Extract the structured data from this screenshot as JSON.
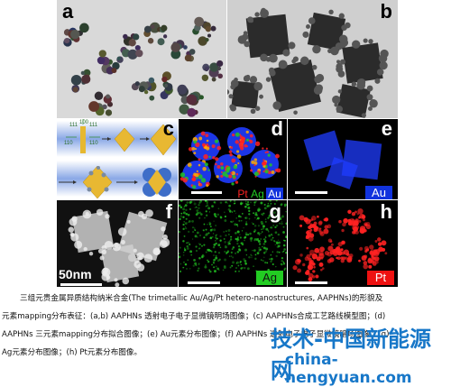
{
  "panels": {
    "a": {
      "label": "a"
    },
    "b": {
      "label": "b"
    },
    "c": {
      "label": "c",
      "miller": [
        "111",
        "100",
        "111",
        "110",
        "110"
      ]
    },
    "d": {
      "label": "d",
      "legend": [
        "Pt",
        "Ag",
        "Au"
      ]
    },
    "e": {
      "label": "e",
      "element": "Au"
    },
    "f": {
      "label": "f",
      "scale_text": "50nm"
    },
    "g": {
      "label": "g",
      "element": "Ag"
    },
    "h": {
      "label": "h",
      "element": "Pt"
    }
  },
  "colors": {
    "au": "#1f3cff",
    "ag": "#22c422",
    "pt": "#ff2222",
    "tag_green": "#22cc22",
    "tag_red": "#ee1111",
    "tag_blue": "#1133dd"
  },
  "caption": {
    "line1": "三组元贵金属异质结构纳米合金(The trimetallic Au/Ag/Pt hetero-nanostructures, AAPHNs)的形貌及",
    "line2": "元素mapping分布表征：(a,b) AAPHNs 透射电子电子显微镜明场图像；(c) AAPHNs合成工艺路线模型图；(d)",
    "line3": "AAPHNs 三元素mapping分布拟合图像；(e) Au元素分布图像；(f) AAPHNs 透射电子电子显微镜暗场图像；(g)",
    "line4": "Ag元素分布图像；(h) Pt元素分布图像。"
  },
  "watermark": {
    "text1": "技术-中国新能源网",
    "text2": "china-nengyuan.com"
  }
}
